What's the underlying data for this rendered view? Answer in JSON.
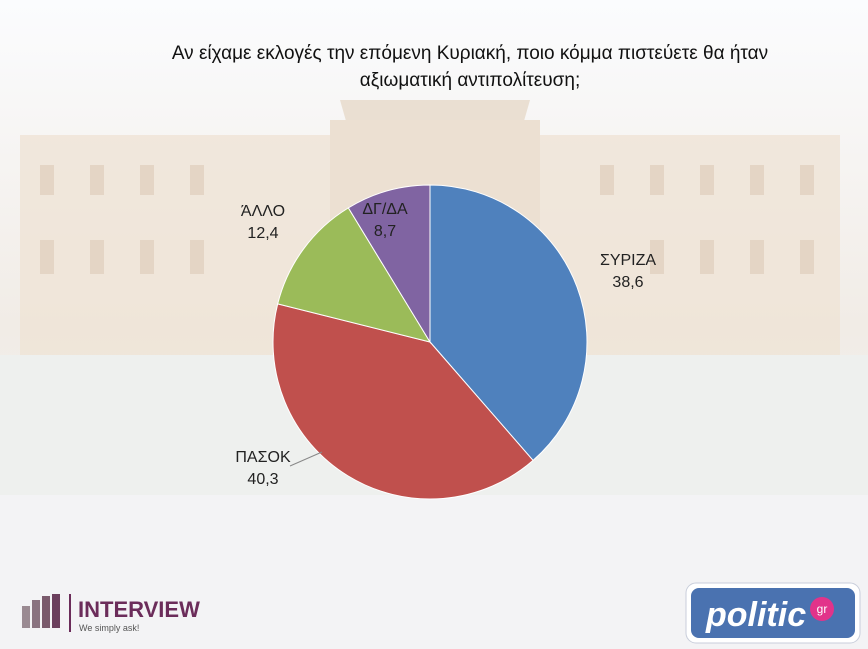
{
  "chart_data": {
    "type": "pie",
    "title": "Αν είχαμε εκλογές την επόμενη Κυριακή, ποιο κόμμα πιστεύετε θα ήταν αξιωματική αντιπολίτευση;",
    "categories": [
      "ΣΥΡΙΖΑ",
      "ΠΑΣΟΚ",
      "ΆΛΛΟ",
      "ΔΓ/ΔΑ"
    ],
    "values": [
      38.6,
      40.3,
      12.4,
      8.7
    ],
    "value_labels": [
      "38,6",
      "40,3",
      "12,4",
      "8,7"
    ],
    "colors": [
      "#4f81bd",
      "#c0504d",
      "#9bbb59",
      "#8064a2"
    ]
  },
  "logos": {
    "interview": "INTERVIEW",
    "interview_tagline": "We simply ask!",
    "politic": "politic",
    "politic_suffix": "gr"
  }
}
